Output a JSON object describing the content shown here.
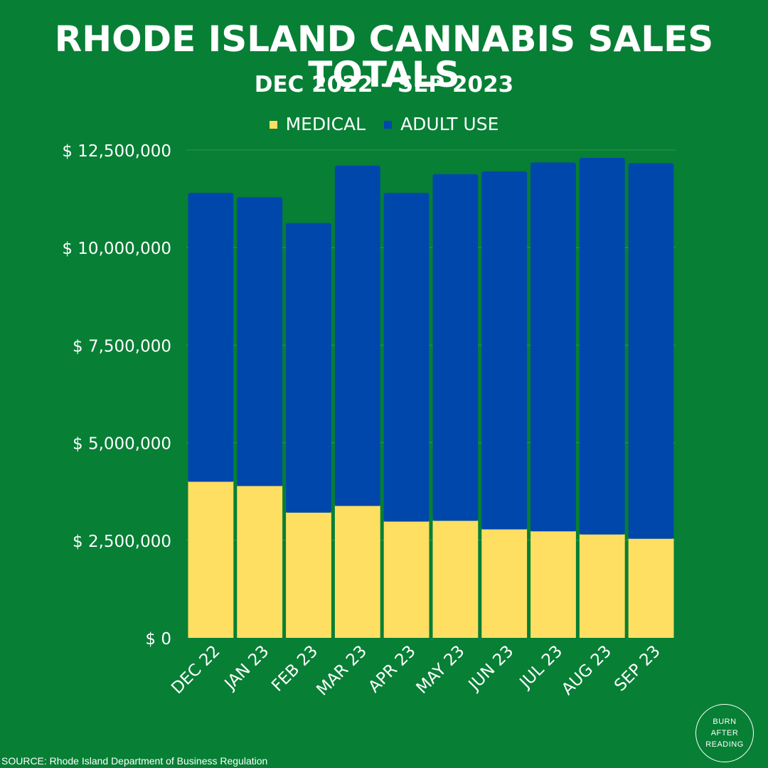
{
  "colors": {
    "background": "#077f35",
    "medical": "#ffdf62",
    "adult_use": "#0047ac",
    "text": "#ffffff",
    "gridline": "#2e9a4e"
  },
  "badge": {
    "lines": [
      "BURN",
      "AFTER",
      "READING"
    ]
  },
  "source": "SOURCE: Rhode Island Department of Business Regulation",
  "chart_data": {
    "type": "bar",
    "stacked": true,
    "title": "RHODE ISLAND CANNABIS SALES TOTALS",
    "subtitle": "DEC 2022 - SEP 2023",
    "categories": [
      "DEC 22",
      "JAN 23",
      "FEB 23",
      "MAR 23",
      "APR 23",
      "MAY 23",
      "JUN 23",
      "JUL 23",
      "AUG 23",
      "SEP 23"
    ],
    "series": [
      {
        "name": "MEDICAL",
        "values": [
          4000000,
          3890000,
          3210000,
          3380000,
          2980000,
          3000000,
          2780000,
          2730000,
          2650000,
          2540000
        ]
      },
      {
        "name": "ADULT USE",
        "values": [
          7400000,
          7400000,
          7420000,
          8720000,
          8420000,
          8880000,
          9170000,
          9450000,
          9650000,
          9620000
        ]
      }
    ],
    "y_ticks": [
      "$ 0",
      "$ 2,500,000",
      "$ 5,000,000",
      "$ 7,500,000",
      "$ 10,000,000",
      "$ 12,500,000"
    ],
    "ylim": [
      0,
      12500000
    ],
    "grid": true,
    "legend_position": "top"
  }
}
